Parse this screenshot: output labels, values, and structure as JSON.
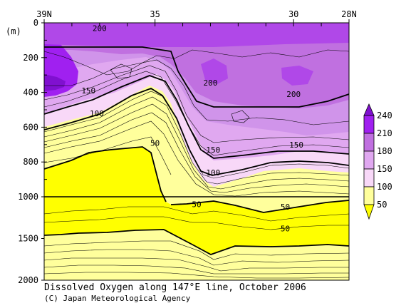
{
  "chart_data": {
    "type": "heatmap",
    "title": "Dissolved Oxygen along 147°E line, October 2006",
    "credit": "(C) Japan Meteorological Agency",
    "y_unit_label": "(m)",
    "x_tick_labels": [
      {
        "lat": 39,
        "text": "39N"
      },
      {
        "lat": 35,
        "text": "35"
      },
      {
        "lat": 30,
        "text": "30"
      },
      {
        "lat": 28,
        "text": "28N"
      }
    ],
    "x_range": [
      39,
      28
    ],
    "y_upper_range": [
      0,
      1000
    ],
    "y_lower_range": [
      1000,
      2000
    ],
    "y_tick_labels": [
      "0",
      "200",
      "400",
      "600",
      "800",
      "1000",
      "1500",
      "2000"
    ],
    "legend_levels": [
      "240",
      "210",
      "180",
      "150",
      "100",
      "50"
    ],
    "legend_colors": [
      "#a020f0",
      "#c070e0",
      "#e0a8f0",
      "#f8d8f8",
      "#ffff9c",
      "#ffff00"
    ],
    "legend_top_color": "#8010d0",
    "contour_labels": [
      {
        "text": "200",
        "lat": 37.0,
        "depth": 30
      },
      {
        "text": "150",
        "lat": 37.4,
        "depth": 390
      },
      {
        "text": "100",
        "lat": 37.1,
        "depth": 520
      },
      {
        "text": "200",
        "lat": 33.0,
        "depth": 345
      },
      {
        "text": "200",
        "lat": 30.0,
        "depth": 410
      },
      {
        "text": "150",
        "lat": 32.9,
        "depth": 730
      },
      {
        "text": "150",
        "lat": 29.9,
        "depth": 700
      },
      {
        "text": "100",
        "lat": 32.9,
        "depth": 860
      },
      {
        "text": "50",
        "lat": 35.0,
        "depth": 690
      },
      {
        "text": "50",
        "lat": 33.5,
        "depth": 1090
      },
      {
        "text": "50",
        "lat": 30.3,
        "depth": 1120
      },
      {
        "text": "50",
        "lat": 30.3,
        "depth": 1380
      }
    ]
  }
}
